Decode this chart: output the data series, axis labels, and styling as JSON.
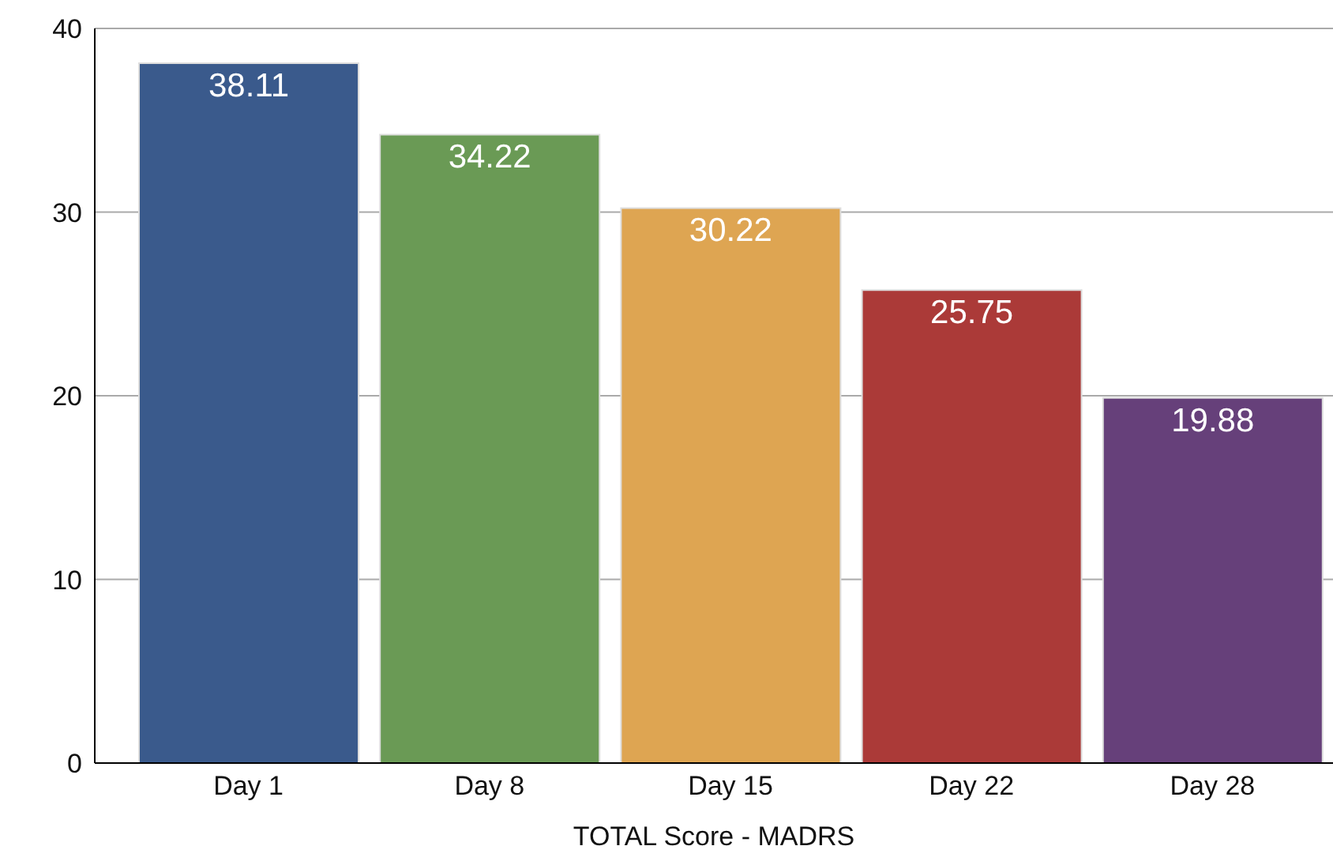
{
  "chart_data": {
    "type": "bar",
    "xlabel": "TOTAL Score - MADRS",
    "categories": [
      "Day 1",
      "Day 8",
      "Day 15",
      "Day 22",
      "Day 28"
    ],
    "values": [
      38.11,
      34.22,
      30.22,
      25.75,
      19.88
    ],
    "colors": [
      "#3a5a8c",
      "#6a9a55",
      "#dea552",
      "#ab3a38",
      "#66407a"
    ],
    "ylim": [
      0,
      40
    ],
    "yticks": [
      0,
      10,
      20,
      30,
      40
    ],
    "grid": "y",
    "data_labels": true
  }
}
